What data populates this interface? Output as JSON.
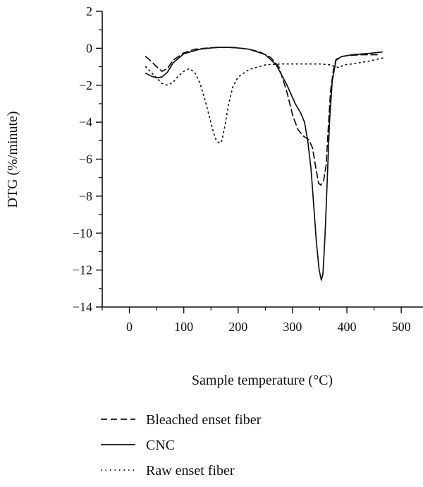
{
  "chart_data": {
    "type": "line",
    "title": "",
    "xlabel": "Sample temperature (°C)",
    "ylabel": "DTG (%/minute)",
    "xlim": [
      -50,
      540
    ],
    "ylim": [
      -14,
      2
    ],
    "xticks": [
      0,
      100,
      200,
      300,
      400,
      500
    ],
    "yticks": [
      2,
      0,
      -2,
      -4,
      -6,
      -8,
      -10,
      -12,
      -14
    ],
    "grid": false,
    "legend_position": "bottom",
    "series": [
      {
        "name": "Bleached enset fiber",
        "style": "dashed",
        "color": "#111111",
        "points": [
          [
            30,
            -0.45
          ],
          [
            40,
            -0.7
          ],
          [
            50,
            -1.0
          ],
          [
            60,
            -1.25
          ],
          [
            70,
            -1.1
          ],
          [
            80,
            -0.65
          ],
          [
            100,
            -0.25
          ],
          [
            120,
            -0.05
          ],
          [
            150,
            0.03
          ],
          [
            180,
            0.05
          ],
          [
            200,
            0.02
          ],
          [
            220,
            -0.05
          ],
          [
            240,
            -0.2
          ],
          [
            260,
            -0.5
          ],
          [
            275,
            -1.0
          ],
          [
            290,
            -2.4
          ],
          [
            300,
            -3.6
          ],
          [
            310,
            -4.4
          ],
          [
            320,
            -4.75
          ],
          [
            330,
            -4.95
          ],
          [
            337,
            -5.4
          ],
          [
            343,
            -6.5
          ],
          [
            348,
            -7.3
          ],
          [
            352,
            -7.4
          ],
          [
            357,
            -7.2
          ],
          [
            362,
            -6.3
          ],
          [
            366,
            -4.2
          ],
          [
            370,
            -2.3
          ],
          [
            375,
            -1.2
          ],
          [
            380,
            -0.6
          ],
          [
            390,
            -0.45
          ],
          [
            400,
            -0.4
          ],
          [
            430,
            -0.35
          ],
          [
            460,
            -0.35
          ]
        ]
      },
      {
        "name": "CNC",
        "style": "solid",
        "color": "#111111",
        "points": [
          [
            30,
            -1.35
          ],
          [
            40,
            -1.5
          ],
          [
            50,
            -1.6
          ],
          [
            60,
            -1.55
          ],
          [
            70,
            -1.3
          ],
          [
            80,
            -0.8
          ],
          [
            100,
            -0.3
          ],
          [
            130,
            -0.05
          ],
          [
            160,
            0.05
          ],
          [
            190,
            0.05
          ],
          [
            220,
            -0.05
          ],
          [
            250,
            -0.35
          ],
          [
            270,
            -0.9
          ],
          [
            290,
            -2.0
          ],
          [
            305,
            -3.0
          ],
          [
            315,
            -3.5
          ],
          [
            322,
            -4.0
          ],
          [
            328,
            -5.0
          ],
          [
            334,
            -6.5
          ],
          [
            339,
            -8.5
          ],
          [
            344,
            -10.5
          ],
          [
            349,
            -12.0
          ],
          [
            353,
            -12.55
          ],
          [
            356,
            -12.2
          ],
          [
            360,
            -10.0
          ],
          [
            364,
            -7.0
          ],
          [
            368,
            -4.0
          ],
          [
            373,
            -1.8
          ],
          [
            380,
            -0.65
          ],
          [
            390,
            -0.45
          ],
          [
            410,
            -0.35
          ],
          [
            440,
            -0.28
          ],
          [
            465,
            -0.2
          ]
        ]
      },
      {
        "name": "Raw enset fiber",
        "style": "dotted",
        "color": "#111111",
        "points": [
          [
            30,
            -1.0
          ],
          [
            40,
            -1.3
          ],
          [
            50,
            -1.6
          ],
          [
            60,
            -1.9
          ],
          [
            70,
            -2.0
          ],
          [
            80,
            -1.85
          ],
          [
            90,
            -1.5
          ],
          [
            100,
            -1.25
          ],
          [
            110,
            -1.1
          ],
          [
            120,
            -1.3
          ],
          [
            130,
            -1.9
          ],
          [
            140,
            -2.9
          ],
          [
            148,
            -3.8
          ],
          [
            155,
            -4.6
          ],
          [
            160,
            -5.0
          ],
          [
            166,
            -5.15
          ],
          [
            170,
            -5.0
          ],
          [
            175,
            -4.3
          ],
          [
            182,
            -3.1
          ],
          [
            190,
            -2.1
          ],
          [
            200,
            -1.55
          ],
          [
            220,
            -1.15
          ],
          [
            250,
            -0.9
          ],
          [
            280,
            -0.85
          ],
          [
            320,
            -0.85
          ],
          [
            350,
            -0.85
          ],
          [
            370,
            -0.9
          ],
          [
            380,
            -1.0
          ],
          [
            385,
            -1.05
          ],
          [
            395,
            -0.9
          ],
          [
            410,
            -0.85
          ],
          [
            440,
            -0.7
          ],
          [
            470,
            -0.5
          ]
        ]
      }
    ]
  }
}
